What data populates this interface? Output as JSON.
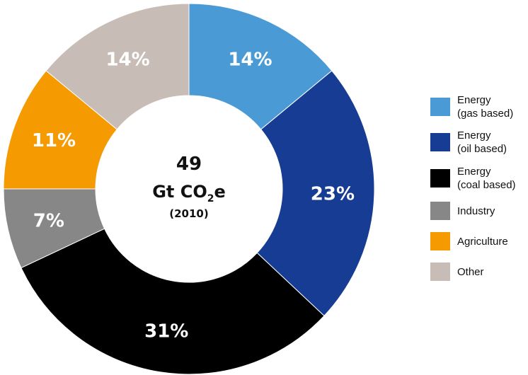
{
  "chart_data": {
    "type": "pie",
    "variant": "donut",
    "center": {
      "value": "49",
      "unit_prefix": "Gt CO",
      "unit_subscript": "2",
      "unit_suffix": "e",
      "year": "(2010)"
    },
    "slices": [
      {
        "name": "Energy (gas based)",
        "legend_label": "Energy\n(gas based)",
        "value": 14,
        "label": "14%",
        "color": "#4a9ad6"
      },
      {
        "name": "Energy (oil based)",
        "legend_label": "Energy\n(oil based)",
        "value": 23,
        "label": "23%",
        "color": "#163c94"
      },
      {
        "name": "Energy (coal based)",
        "legend_label": "Energy\n(coal based)",
        "value": 31,
        "label": "31%",
        "color": "#000000"
      },
      {
        "name": "Industry",
        "legend_label": "Industry",
        "value": 7,
        "label": "7%",
        "color": "#878787"
      },
      {
        "name": "Agriculture",
        "legend_label": "Agriculture",
        "value": 11,
        "label": "11%",
        "color": "#f59a00"
      },
      {
        "name": "Other",
        "legend_label": "Other",
        "value": 14,
        "label": "14%",
        "color": "#c8bdb6"
      }
    ],
    "legend_position": "right"
  }
}
